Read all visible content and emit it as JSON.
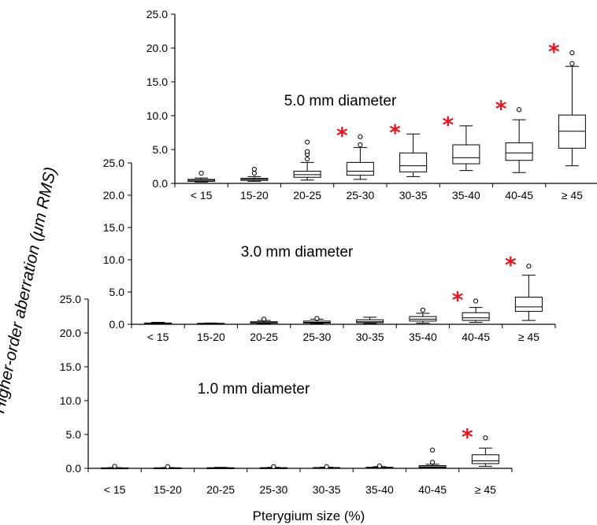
{
  "figure": {
    "ylabel": "Higher-order aberration (μm RMS)",
    "xlabel": "Pterygium size (%)",
    "star_color": "#e8141b"
  },
  "chart_data": [
    {
      "type": "box",
      "title": "5.0 mm diameter",
      "ylim": [
        0,
        25
      ],
      "yticks": [
        "0.0",
        "5.0",
        "10.0",
        "15.0",
        "20.0",
        "25.0"
      ],
      "categories": [
        "< 15",
        "15-20",
        "20-25",
        "25-30",
        "30-35",
        "35-40",
        "40-45",
        "≥ 45"
      ],
      "boxes": [
        {
          "min": 0.2,
          "q1": 0.3,
          "median": 0.45,
          "q3": 0.6,
          "max": 0.8,
          "outliers": [
            1.5
          ],
          "significant": false
        },
        {
          "min": 0.3,
          "q1": 0.45,
          "median": 0.6,
          "q3": 0.75,
          "max": 1.0,
          "outliers": [
            1.5,
            2.1
          ],
          "significant": false
        },
        {
          "min": 0.5,
          "q1": 0.9,
          "median": 1.3,
          "q3": 1.8,
          "max": 3.1,
          "outliers": [
            3.6,
            4.3,
            4.7,
            6.1
          ],
          "significant": false
        },
        {
          "min": 0.6,
          "q1": 1.2,
          "median": 1.8,
          "q3": 3.1,
          "max": 5.3,
          "outliers": [
            5.7,
            6.9
          ],
          "significant": true
        },
        {
          "min": 1.0,
          "q1": 1.7,
          "median": 2.6,
          "q3": 4.5,
          "max": 7.3,
          "outliers": [],
          "significant": true
        },
        {
          "min": 1.9,
          "q1": 2.9,
          "median": 3.8,
          "q3": 5.7,
          "max": 8.5,
          "outliers": [],
          "significant": true
        },
        {
          "min": 1.6,
          "q1": 3.4,
          "median": 4.5,
          "q3": 6.0,
          "max": 9.4,
          "outliers": [
            10.9
          ],
          "significant": true
        },
        {
          "min": 2.6,
          "q1": 5.2,
          "median": 7.7,
          "q3": 10.1,
          "max": 17.3,
          "outliers": [
            17.7,
            19.3
          ],
          "significant": true
        }
      ]
    },
    {
      "type": "box",
      "title": "3.0 mm diameter",
      "ylim": [
        0,
        25
      ],
      "yticks": [
        "0.0",
        "5.0",
        "10.0",
        "15.0",
        "20.0",
        "25.0"
      ],
      "categories": [
        "< 15",
        "15-20",
        "20-25",
        "25-30",
        "30-35",
        "35-40",
        "40-45",
        "≥ 45"
      ],
      "boxes": [
        {
          "min": 0.05,
          "q1": 0.1,
          "median": 0.15,
          "q3": 0.2,
          "max": 0.3,
          "outliers": [],
          "significant": false
        },
        {
          "min": 0.05,
          "q1": 0.08,
          "median": 0.1,
          "q3": 0.15,
          "max": 0.2,
          "outliers": [],
          "significant": false
        },
        {
          "min": 0.1,
          "q1": 0.18,
          "median": 0.25,
          "q3": 0.4,
          "max": 0.6,
          "outliers": [
            0.8
          ],
          "significant": false
        },
        {
          "min": 0.1,
          "q1": 0.2,
          "median": 0.3,
          "q3": 0.5,
          "max": 0.8,
          "outliers": [
            0.9
          ],
          "significant": false
        },
        {
          "min": 0.1,
          "q1": 0.25,
          "median": 0.4,
          "q3": 0.7,
          "max": 1.1,
          "outliers": [],
          "significant": false
        },
        {
          "min": 0.2,
          "q1": 0.5,
          "median": 0.8,
          "q3": 1.2,
          "max": 1.7,
          "outliers": [
            2.2
          ],
          "significant": false
        },
        {
          "min": 0.3,
          "q1": 0.6,
          "median": 1.0,
          "q3": 1.8,
          "max": 2.6,
          "outliers": [
            3.6
          ],
          "significant": true
        },
        {
          "min": 0.6,
          "q1": 2.0,
          "median": 2.7,
          "q3": 4.2,
          "max": 7.6,
          "outliers": [
            9.0
          ],
          "significant": true
        }
      ]
    },
    {
      "type": "box",
      "title": "1.0 mm diameter",
      "ylim": [
        0,
        25
      ],
      "yticks": [
        "0.0",
        "5.0",
        "10.0",
        "15.0",
        "20.0",
        "25.0"
      ],
      "categories": [
        "< 15",
        "15-20",
        "20-25",
        "25-30",
        "30-35",
        "35-40",
        "40-45",
        "≥ 45"
      ],
      "boxes": [
        {
          "min": 0.02,
          "q1": 0.04,
          "median": 0.05,
          "q3": 0.07,
          "max": 0.1,
          "outliers": [
            0.3
          ],
          "significant": false
        },
        {
          "min": 0.02,
          "q1": 0.04,
          "median": 0.05,
          "q3": 0.08,
          "max": 0.12,
          "outliers": [
            0.25
          ],
          "significant": false
        },
        {
          "min": 0.02,
          "q1": 0.04,
          "median": 0.06,
          "q3": 0.09,
          "max": 0.14,
          "outliers": [],
          "significant": false
        },
        {
          "min": 0.02,
          "q1": 0.04,
          "median": 0.06,
          "q3": 0.1,
          "max": 0.15,
          "outliers": [
            0.25
          ],
          "significant": false
        },
        {
          "min": 0.02,
          "q1": 0.05,
          "median": 0.08,
          "q3": 0.12,
          "max": 0.18,
          "outliers": [
            0.25
          ],
          "significant": false
        },
        {
          "min": 0.03,
          "q1": 0.06,
          "median": 0.1,
          "q3": 0.16,
          "max": 0.25,
          "outliers": [
            0.35
          ],
          "significant": false
        },
        {
          "min": 0.04,
          "q1": 0.12,
          "median": 0.22,
          "q3": 0.4,
          "max": 0.6,
          "outliers": [
            0.9,
            2.7
          ],
          "significant": false
        },
        {
          "min": 0.3,
          "q1": 0.7,
          "median": 1.1,
          "q3": 2.0,
          "max": 3.0,
          "outliers": [
            4.5
          ],
          "significant": true
        }
      ]
    }
  ]
}
